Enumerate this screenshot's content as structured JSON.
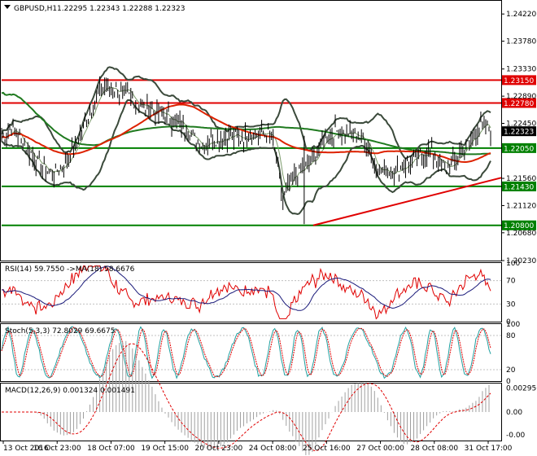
{
  "header": {
    "symbol": "GBPUSD,H1",
    "ohlc": "1.22295 1.22343 1.22288 1.22323"
  },
  "colors": {
    "price_line": "#000000",
    "bollinger": "#3b4a3b",
    "ma_fast": "#7a9a6a",
    "ma_red": "#dd2200",
    "ma_green": "#1f7a1f",
    "support_line": "#008000",
    "resistance_line": "#e00000",
    "trendline": "#e00000",
    "rsi_line": "#e00000",
    "rsi_ma": "#1a1a7a",
    "stoch_main": "#20a0a0",
    "stoch_signal": "#e00000",
    "macd_hist": "#a0a0a0",
    "macd_signal": "#e00000"
  },
  "chart_data": [
    {
      "type": "line",
      "panel": "price",
      "title": "GBPUSD,H1",
      "y_ticks": [
        "1.24220",
        "1.23780",
        "1.23330",
        "1.22890",
        "1.22450",
        "1.22000",
        "1.21560",
        "1.21120",
        "1.20680",
        "1.20230"
      ],
      "ylim": [
        1.2023,
        1.2442
      ],
      "horizontal_levels": [
        {
          "value": 1.2315,
          "label": "1.23150",
          "color": "#e00000"
        },
        {
          "value": 1.2278,
          "label": "1.22780",
          "color": "#e00000"
        },
        {
          "value": 1.2205,
          "label": "1.22050",
          "color": "#008000"
        },
        {
          "value": 1.2143,
          "label": "1.21430",
          "color": "#008000"
        },
        {
          "value": 1.208,
          "label": "1.20800",
          "color": "#008000"
        }
      ],
      "current_price": {
        "value": 1.22323,
        "label": "1.22323"
      },
      "trendline": {
        "from": [
          "25 Oct 16:00",
          1.208
        ],
        "to": [
          "31 Oct 17:00",
          1.2157
        ]
      },
      "price_approx": [
        1.2222,
        1.2238,
        1.2215,
        1.2192,
        1.2172,
        1.2165,
        1.218,
        1.2205,
        1.2245,
        1.2285,
        1.2305,
        1.23,
        1.229,
        1.228,
        1.227,
        1.2262,
        1.2255,
        1.2245,
        1.2232,
        1.221,
        1.2218,
        1.2222,
        1.2225,
        1.222,
        1.2229,
        1.2228,
        1.2225,
        1.212,
        1.216,
        1.2172,
        1.2185,
        1.222,
        1.2232,
        1.2229,
        1.2226,
        1.2219,
        1.2173,
        1.2168,
        1.217,
        1.218,
        1.219,
        1.22,
        1.2185,
        1.217,
        1.2195,
        1.2215,
        1.2242,
        1.2232
      ]
    },
    {
      "type": "line",
      "panel": "rsi",
      "title": "RSI(14) 59.7550 ->MA(18) 58.6676",
      "y_ticks": [
        "100",
        "70",
        "30",
        "0"
      ],
      "ylim": [
        0,
        100
      ]
    },
    {
      "type": "line",
      "panel": "stochastic",
      "title": "Stoch(5,3,3) 72.8029 69.6675",
      "y_ticks": [
        "100",
        "80",
        "20",
        "0"
      ],
      "ylim": [
        0,
        100
      ]
    },
    {
      "type": "bar",
      "panel": "macd",
      "title": "MACD(12,26,9) 0.001324 0.001491",
      "y_ticks": [
        "0.002956",
        "0.00",
        "-0.00"
      ],
      "ylim": [
        -0.0035,
        0.0035
      ]
    }
  ],
  "x_axis": {
    "ticks": [
      "13 Oct 2016",
      "16 Oct 23:00",
      "18 Oct 07:00",
      "19 Oct 15:00",
      "20 Oct 23:00",
      "24 Oct 08:00",
      "25 Oct 16:00",
      "27 Oct 00:00",
      "28 Oct 08:00",
      "31 Oct 17:00"
    ]
  }
}
